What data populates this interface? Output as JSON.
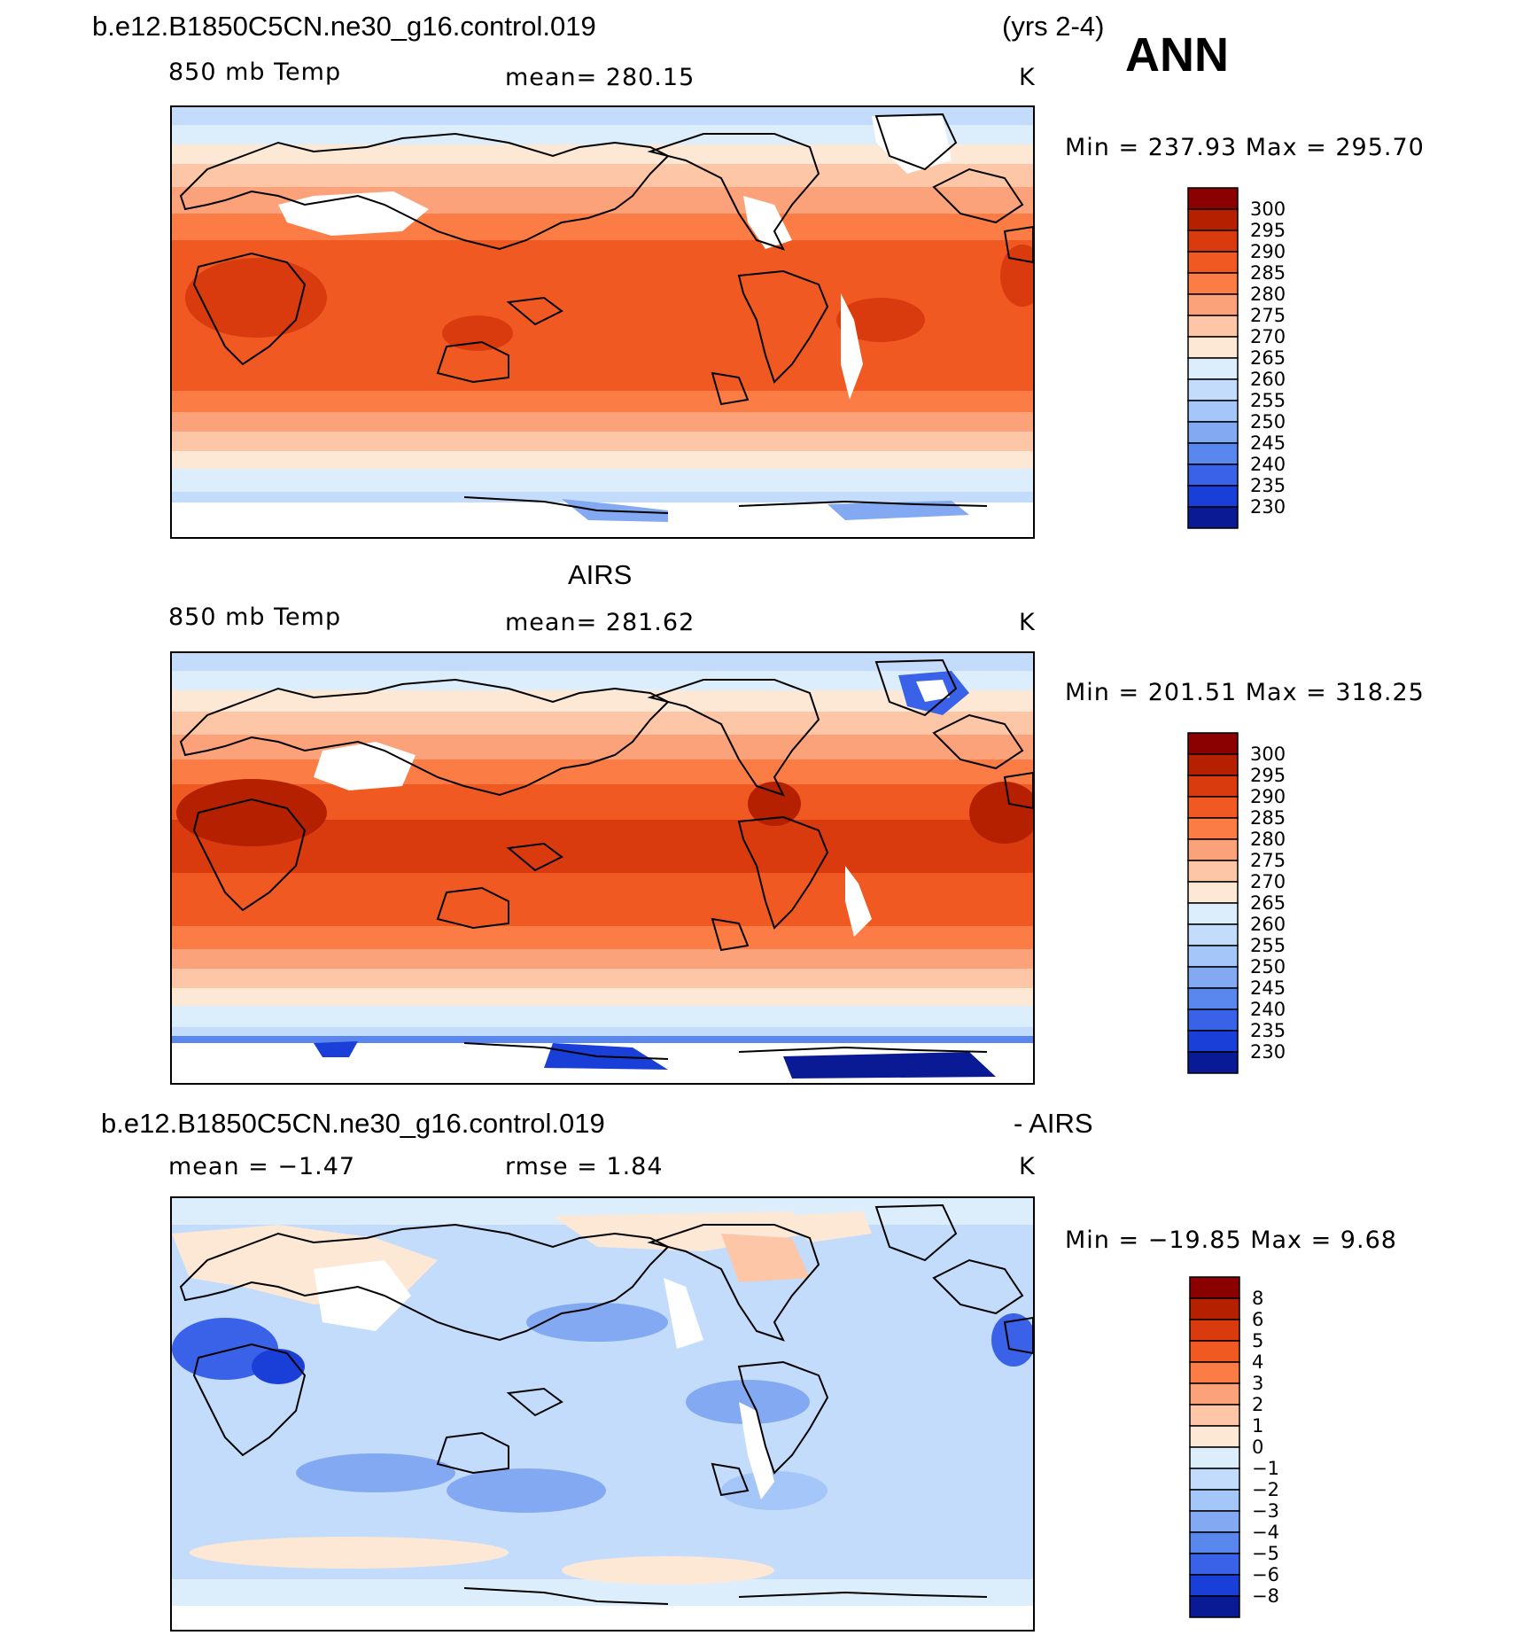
{
  "figure": {
    "case_title": "b.e12.B1850C5CN.ne30_g16.control.019",
    "years": "(yrs 2-4)",
    "season": "ANN"
  },
  "panels": [
    {
      "id": "model",
      "title": "",
      "variable": "850 mb Temp",
      "stat": "mean=  280.15",
      "units": "K",
      "minmax": "Min  =  237.93  Max  =  295.70",
      "scale": "absolute"
    },
    {
      "id": "obs",
      "title": "AIRS",
      "variable": "850 mb Temp",
      "stat": "mean=  281.62",
      "units": "K",
      "minmax": "Min  =  201.51  Max  =  318.25",
      "scale": "absolute"
    },
    {
      "id": "diff",
      "title": "b.e12.B1850C5CN.ne30_g16.control.019",
      "title_right": "- AIRS",
      "variable": "mean  =    −1.47",
      "stat": "rmse  =     1.84",
      "units": "K",
      "minmax": "Min  = −19.85  Max  =     9.68",
      "scale": "difference"
    }
  ],
  "colorbars": {
    "absolute": {
      "labels": [
        "300",
        "295",
        "290",
        "285",
        "280",
        "275",
        "270",
        "265",
        "260",
        "255",
        "250",
        "245",
        "240",
        "235",
        "230"
      ],
      "colors": [
        "#8b0000",
        "#b52000",
        "#d93a0e",
        "#f05a22",
        "#fb7d45",
        "#fca27a",
        "#fdc6a6",
        "#fde8d6",
        "#dceefc",
        "#c3dcfb",
        "#a5c6f8",
        "#82a9f2",
        "#5a87ee",
        "#3a62e8",
        "#1a3fd8",
        "#0a1a94"
      ]
    },
    "difference": {
      "labels": [
        "8",
        "6",
        "5",
        "4",
        "3",
        "2",
        "1",
        "0",
        "−1",
        "−2",
        "−3",
        "−4",
        "−5",
        "−6",
        "−8"
      ],
      "colors": [
        "#8b0000",
        "#b52000",
        "#d93a0e",
        "#f05a22",
        "#fb7d45",
        "#fca27a",
        "#fdc6a6",
        "#fde8d6",
        "#dceefc",
        "#c3dcfb",
        "#a5c6f8",
        "#82a9f2",
        "#5a87ee",
        "#3a62e8",
        "#1a3fd8",
        "#0a1a94"
      ]
    }
  }
}
